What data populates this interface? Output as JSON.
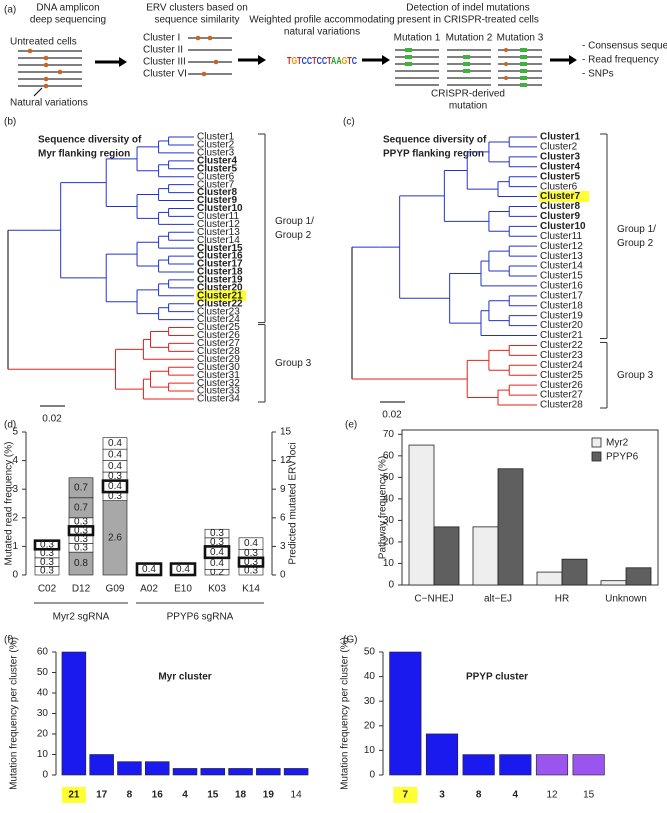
{
  "panel_a": {
    "label": "(a)",
    "step1_title": [
      "DNA amplicon",
      "deep sequencing"
    ],
    "untreated": "Untreated cells",
    "natural": "Natural variations",
    "step2_title": [
      "ERV clusters based on",
      "sequence similarity"
    ],
    "clusters": [
      "Cluster I",
      "Cluster II",
      "Cluster III",
      "Cluster VI"
    ],
    "step3_title": [
      "Weighted profile accommodating",
      "natural variations"
    ],
    "logo": "TGTCCTCCTAAGTC",
    "step4_title": [
      "Detection of indel mutations",
      "present in CRISPR-treated cells"
    ],
    "mutations": [
      "Mutation 1",
      "Mutation 2",
      "Mutation 3"
    ],
    "crispr": [
      "CRISPR-derived",
      "mutation"
    ],
    "outputs": [
      "- Consensus sequence",
      "- Read frequency",
      "- SNPs"
    ]
  },
  "trees": [
    {
      "label": "(b)",
      "title": [
        "Sequence diversity of",
        "Myr flanking region"
      ],
      "branch_colors": [
        "#2233cc",
        "#e8201a"
      ],
      "group_labels": [
        [
          "Group 1/",
          "Group 2"
        ],
        [
          "Group 3"
        ]
      ],
      "scale": "0.02",
      "leaves": [
        {
          "label": "Cluster1",
          "color": "#9a4fe0"
        },
        {
          "label": "Cluster2",
          "color": "#1a1ad0"
        },
        {
          "label": "Cluster3",
          "color": "#9a4fe0"
        },
        {
          "label": "Cluster4",
          "color": "#1a1ad0",
          "bold": true
        },
        {
          "label": "Cluster5",
          "color": "#1a1ad0",
          "bold": true
        },
        {
          "label": "Cluster6",
          "color": "#1a1ad0"
        },
        {
          "label": "Cluster7",
          "color": "#9a4fe0"
        },
        {
          "label": "Cluster8",
          "color": "#1a1ad0",
          "bold": true
        },
        {
          "label": "Cluster9",
          "color": "#1a1ad0",
          "bold": true
        },
        {
          "label": "Cluster10",
          "color": "#1a1ad0",
          "bold": true
        },
        {
          "label": "Cluster11",
          "color": "#9a4fe0"
        },
        {
          "label": "Cluster12",
          "color": "#9a4fe0"
        },
        {
          "label": "Cluster13",
          "color": "#9a4fe0"
        },
        {
          "label": "Cluster14",
          "color": "#1a1ad0"
        },
        {
          "label": "Cluster15",
          "color": "#1a1ad0",
          "bold": true
        },
        {
          "label": "Cluster16",
          "color": "#1a1ad0",
          "bold": true
        },
        {
          "label": "Cluster17",
          "color": "#1a1ad0",
          "bold": true
        },
        {
          "label": "Cluster18",
          "color": "#1a1ad0",
          "bold": true
        },
        {
          "label": "Cluster19",
          "color": "#1a1ad0",
          "bold": true
        },
        {
          "label": "Cluster20",
          "color": "#1a1ad0",
          "bold": true
        },
        {
          "label": "Cluster21",
          "color": "#1a1ad0",
          "bold": true,
          "highlight": true
        },
        {
          "label": "Cluster22",
          "color": "#1a1ad0",
          "bold": true
        },
        {
          "label": "Cluster23",
          "color": "#9a4fe0"
        },
        {
          "label": "Cluster24",
          "color": "#9a4fe0"
        },
        {
          "label": "Cluster25",
          "color": "#e8201a"
        },
        {
          "label": "Cluster26",
          "color": "#e8201a"
        },
        {
          "label": "Cluster27",
          "color": "#e8201a"
        },
        {
          "label": "Cluster28",
          "color": "#e8201a"
        },
        {
          "label": "Cluster29",
          "color": "#e8201a"
        },
        {
          "label": "Cluster30",
          "color": "#e8201a"
        },
        {
          "label": "Cluster31",
          "color": "#e8201a"
        },
        {
          "label": "Cluster32",
          "color": "#e8201a"
        },
        {
          "label": "Cluster33",
          "color": "#e8201a"
        },
        {
          "label": "Cluster34",
          "color": "#e8201a"
        }
      ]
    },
    {
      "label": "(c)",
      "title": [
        "Sequence diversity of",
        "PPYP flanking region"
      ],
      "branch_colors": [
        "#2233cc",
        "#e8201a"
      ],
      "group_labels": [
        [
          "Group 1/",
          "Group 2"
        ],
        [
          "Group 3"
        ]
      ],
      "scale": "0.02",
      "leaves": [
        {
          "label": "Cluster1",
          "color": "#1a1ad0",
          "bold": true
        },
        {
          "label": "Cluster2",
          "color": "#9a4fe0"
        },
        {
          "label": "Cluster3",
          "color": "#1a1ad0",
          "bold": true
        },
        {
          "label": "Cluster4",
          "color": "#1a1ad0",
          "bold": true
        },
        {
          "label": "Cluster5",
          "color": "#1a1ad0",
          "bold": true
        },
        {
          "label": "Cluster6",
          "color": "#9a4fe0"
        },
        {
          "label": "Cluster7",
          "color": "#1a1ad0",
          "bold": true,
          "highlight": true
        },
        {
          "label": "Cluster8",
          "color": "#1a1ad0",
          "bold": true
        },
        {
          "label": "Cluster9",
          "color": "#1a1ad0",
          "bold": true
        },
        {
          "label": "Cluster10",
          "color": "#1a1ad0",
          "bold": true
        },
        {
          "label": "Cluster11",
          "color": "#9a4fe0"
        },
        {
          "label": "Cluster12",
          "color": "#9a4fe0"
        },
        {
          "label": "Cluster13",
          "color": "#9a4fe0"
        },
        {
          "label": "Cluster14",
          "color": "#9a4fe0"
        },
        {
          "label": "Cluster15",
          "color": "#9a4fe0"
        },
        {
          "label": "Cluster16",
          "color": "#9a4fe0"
        },
        {
          "label": "Cluster17",
          "color": "#9a4fe0"
        },
        {
          "label": "Cluster18",
          "color": "#9a4fe0"
        },
        {
          "label": "Cluster19",
          "color": "#9a4fe0"
        },
        {
          "label": "Cluster20",
          "color": "#9a4fe0"
        },
        {
          "label": "Cluster21",
          "color": "#9a4fe0"
        },
        {
          "label": "Cluster22",
          "color": "#e8201a"
        },
        {
          "label": "Cluster23",
          "color": "#e8201a"
        },
        {
          "label": "Cluster24",
          "color": "#e8201a"
        },
        {
          "label": "Cluster25",
          "color": "#e8201a"
        },
        {
          "label": "Cluster26",
          "color": "#e8201a"
        },
        {
          "label": "Cluster27",
          "color": "#e8201a"
        },
        {
          "label": "Cluster28",
          "color": "#e8201a"
        }
      ]
    }
  ],
  "chart_data": [
    {
      "type": "stacked_bar",
      "panel": "(d)",
      "categories": [
        "C02",
        "D12",
        "G09",
        "A02",
        "E10",
        "K03",
        "K14"
      ],
      "segments": [
        [
          0.3,
          0.3,
          0.3,
          0.3
        ],
        [
          0.8,
          0.3,
          0.3,
          0.3,
          0.3,
          0.7,
          0.7
        ],
        [
          2.6,
          0.3,
          0.4,
          0.3,
          0.4,
          0.4,
          0.4
        ],
        [
          0.4
        ],
        [
          0.4
        ],
        [
          0.2,
          0.4,
          0.4,
          0.3,
          0.3
        ],
        [
          0.3,
          0.3,
          0.3,
          0.4
        ]
      ],
      "segment_colors": [
        [
          "#ffffff",
          "#ffffff",
          "#ffffff",
          "#ffffff"
        ],
        [
          "#a8a8a8",
          "#ffffff",
          "#ffffff",
          "#ffffff",
          "#ffffff",
          "#a8a8a8",
          "#a8a8a8"
        ],
        [
          "#a8a8a8",
          "#ffffff",
          "#ffffff",
          "#ffffff",
          "#ffffff",
          "#ffffff",
          "#ffffff"
        ],
        [
          "#ffffff"
        ],
        [
          "#ffffff"
        ],
        [
          "#ffffff",
          "#ffffff",
          "#ffffff",
          "#ffffff",
          "#ffffff"
        ],
        [
          "#ffffff",
          "#ffffff",
          "#ffffff",
          "#ffffff"
        ]
      ],
      "highlight_segments": [
        3,
        3,
        2,
        0,
        0,
        2,
        1
      ],
      "group_labels": [
        "Myr2 sgRNA",
        "PPYP6 sgRNA"
      ],
      "ylabel": "Mutated read frequency (%)",
      "ylim": [
        0,
        5
      ],
      "yticks": [
        0,
        1,
        2,
        3,
        4,
        5
      ],
      "y2label": "Predicted mutated ERV loci",
      "y2lim": [
        0,
        15
      ],
      "y2ticks": [
        0,
        3,
        6,
        9,
        12,
        15
      ]
    },
    {
      "type": "grouped_bar",
      "panel": "(e)",
      "ylabel": "Pathway frequency (%)",
      "categories": [
        "C−NHEJ",
        "alt−EJ",
        "HR",
        "Unknown"
      ],
      "series": [
        {
          "name": "Myr2",
          "color": "#eeeeee",
          "values": [
            65,
            27,
            6,
            2
          ]
        },
        {
          "name": "PPYP6",
          "color": "#5f5f5f",
          "values": [
            27,
            54,
            12,
            8
          ]
        }
      ],
      "ylim": [
        0,
        72
      ],
      "yticks": [
        0,
        10,
        20,
        30,
        40,
        50,
        60,
        70
      ],
      "legend": "top-right"
    },
    {
      "type": "bar",
      "panel": "(f)",
      "title": "Myr cluster",
      "ylabel": "Mutation frequency per cluster (%)",
      "categories": [
        "21",
        "17",
        "8",
        "16",
        "4",
        "15",
        "18",
        "19",
        "14"
      ],
      "values": [
        60,
        10,
        6.5,
        6.5,
        3.2,
        3.2,
        3.2,
        3.2,
        3.2
      ],
      "colors": [
        "#1a1aee",
        "#1a1aee",
        "#1a1aee",
        "#1a1aee",
        "#1a1aee",
        "#1a1aee",
        "#1a1aee",
        "#1a1aee",
        "#1a1aee"
      ],
      "bold_categories": [
        true,
        true,
        true,
        true,
        true,
        true,
        true,
        true,
        false
      ],
      "highlight_index": 0,
      "ylim": [
        0,
        60
      ],
      "yticks": [
        0,
        10,
        20,
        30,
        40,
        50,
        60
      ]
    },
    {
      "type": "bar",
      "panel": "(G)",
      "title": "PPYP cluster",
      "ylabel": "Mutation frequency per cluster (%)",
      "categories": [
        "7",
        "3",
        "8",
        "4",
        "12",
        "15"
      ],
      "values": [
        50,
        16.7,
        8.3,
        8.3,
        8.3,
        8.3
      ],
      "colors": [
        "#1a1aee",
        "#1a1aee",
        "#1a1aee",
        "#1a1aee",
        "#9955ee",
        "#9955ee"
      ],
      "bold_categories": [
        true,
        true,
        true,
        true,
        false,
        false
      ],
      "highlight_index": 0,
      "ylim": [
        0,
        50
      ],
      "yticks": [
        0,
        10,
        20,
        30,
        40,
        50
      ]
    }
  ]
}
